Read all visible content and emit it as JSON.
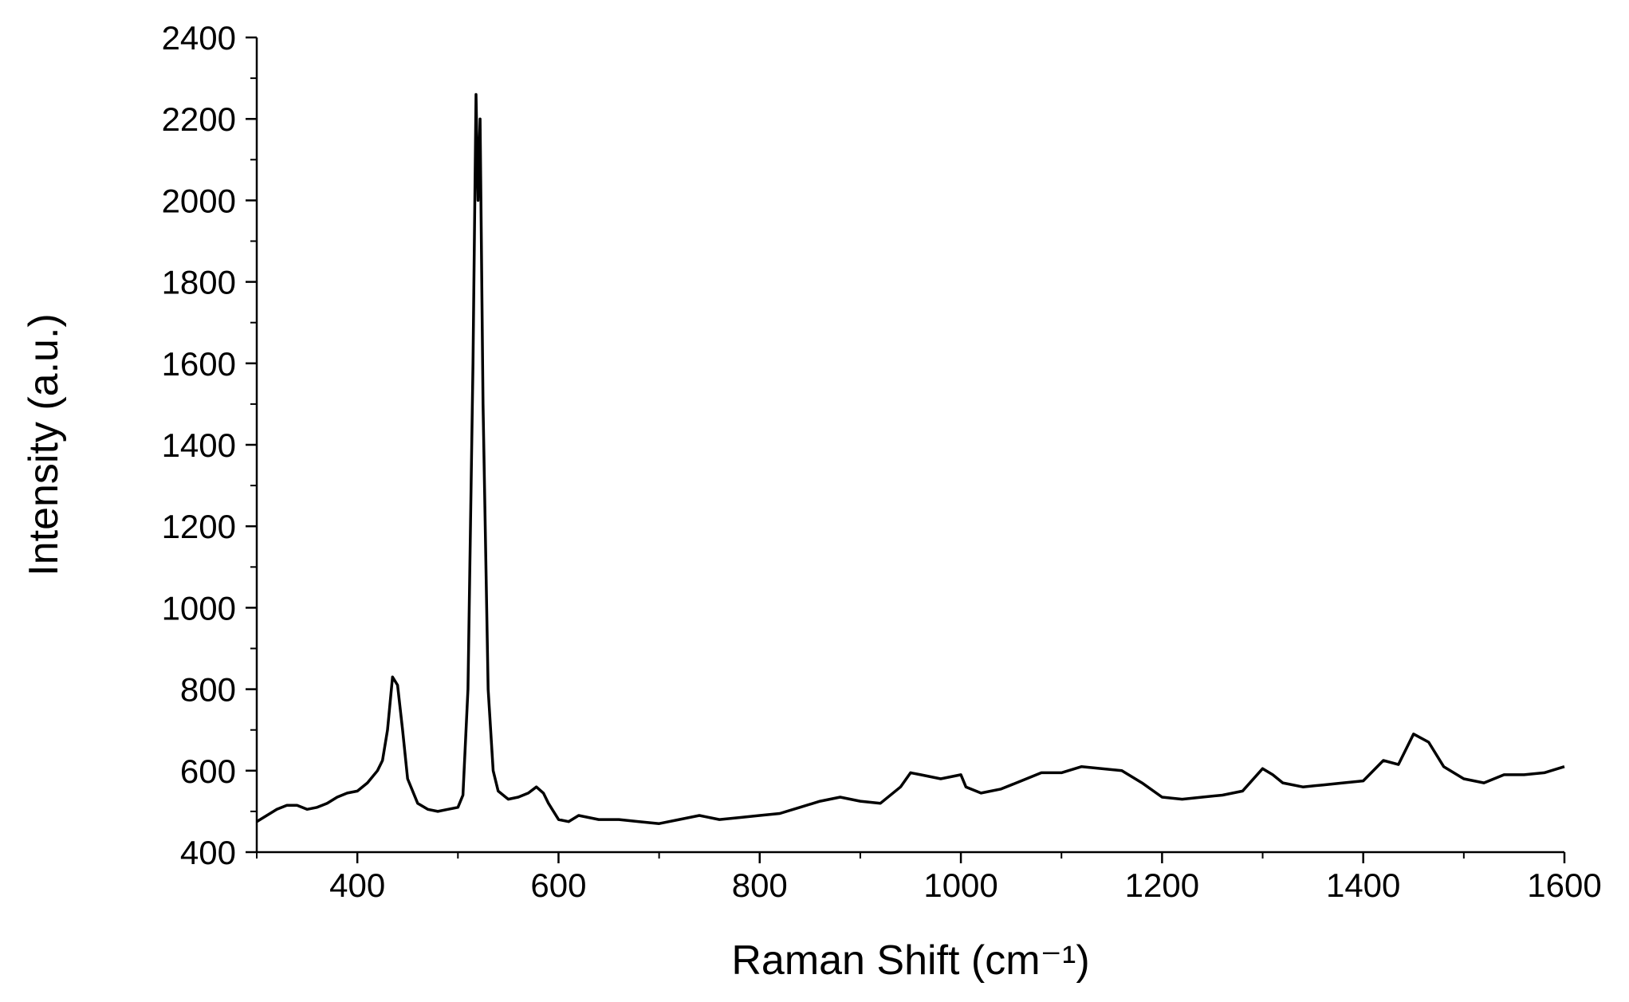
{
  "chart_data": {
    "type": "line",
    "xlabel": "Raman Shift (cm⁻¹)",
    "ylabel": "Intensity (a.u.)",
    "color": "#000000",
    "x": [
      300,
      310,
      320,
      330,
      340,
      350,
      360,
      370,
      380,
      390,
      400,
      410,
      420,
      425,
      430,
      435,
      440,
      445,
      450,
      460,
      470,
      480,
      490,
      500,
      505,
      510,
      515,
      518,
      520,
      522,
      525,
      530,
      535,
      540,
      550,
      560,
      570,
      578,
      585,
      590,
      600,
      610,
      620,
      640,
      660,
      680,
      700,
      720,
      740,
      760,
      780,
      800,
      820,
      840,
      860,
      880,
      900,
      920,
      940,
      950,
      960,
      980,
      1000,
      1005,
      1020,
      1040,
      1060,
      1080,
      1100,
      1120,
      1140,
      1160,
      1180,
      1200,
      1220,
      1240,
      1260,
      1280,
      1300,
      1310,
      1320,
      1340,
      1360,
      1380,
      1400,
      1420,
      1435,
      1450,
      1465,
      1480,
      1500,
      1520,
      1540,
      1560,
      1580,
      1600
    ],
    "values": [
      475,
      490,
      505,
      515,
      515,
      505,
      510,
      520,
      535,
      545,
      550,
      570,
      600,
      625,
      700,
      830,
      810,
      700,
      580,
      520,
      505,
      500,
      505,
      510,
      540,
      800,
      1600,
      2260,
      2000,
      2200,
      1500,
      800,
      600,
      550,
      530,
      535,
      545,
      560,
      545,
      520,
      480,
      475,
      490,
      480,
      480,
      475,
      470,
      480,
      490,
      480,
      485,
      490,
      495,
      510,
      525,
      535,
      525,
      520,
      560,
      595,
      590,
      580,
      590,
      560,
      545,
      555,
      575,
      595,
      595,
      610,
      605,
      600,
      570,
      535,
      530,
      535,
      540,
      550,
      605,
      590,
      570,
      560,
      565,
      570,
      575,
      625,
      615,
      690,
      670,
      610,
      580,
      570,
      590,
      590,
      595,
      610
    ],
    "xlim": [
      300,
      1600
    ],
    "ylim": [
      400,
      2400
    ],
    "xticks": [
      400,
      600,
      800,
      1000,
      1200,
      1400,
      1600
    ],
    "yticks": [
      400,
      600,
      800,
      1000,
      1200,
      1400,
      1600,
      1800,
      2000,
      2200,
      2400
    ],
    "xminorticks": [
      300,
      500,
      700,
      900,
      1100,
      1300,
      1500
    ],
    "yminorticks": [
      500,
      700,
      900,
      1100,
      1300,
      1500,
      1700,
      1900,
      2100,
      2300
    ]
  }
}
